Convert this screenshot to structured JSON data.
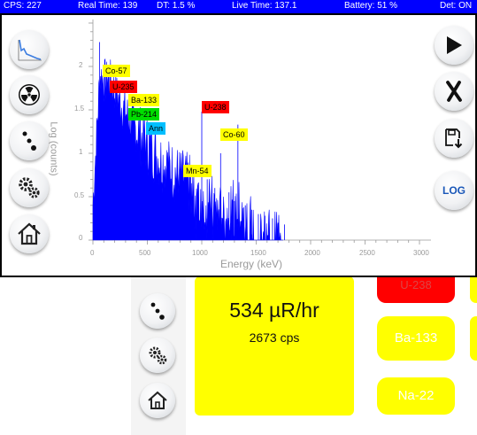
{
  "status_bar": {
    "cps": "CPS: 227",
    "real_time": "Real Time: 139",
    "dt": "DT: 1.5 %",
    "live_time": "Live Time: 137.1",
    "battery": "Battery: 51 %",
    "det": "Det: ON"
  },
  "spectrum": {
    "y_label": "Log (counts)",
    "x_label": "Energy (keV)",
    "y_ticks": [
      "2",
      "1.5",
      "1",
      "0.5",
      "0"
    ],
    "x_ticks": [
      "0",
      "500",
      "1000",
      "1500",
      "2000",
      "2500",
      "3000"
    ],
    "isotope_labels": [
      {
        "label": "Co-57",
        "color": "#ffff00"
      },
      {
        "label": "U-235",
        "color": "#ff0000"
      },
      {
        "label": "Ba-133",
        "color": "#ffff00"
      },
      {
        "label": "Pb-214",
        "color": "#00dd00"
      },
      {
        "label": "Ann",
        "color": "#00bfff"
      },
      {
        "label": "U-238",
        "color": "#ff0000"
      },
      {
        "label": "Co-60",
        "color": "#ffff00"
      },
      {
        "label": "Mn-54",
        "color": "#ffff00"
      }
    ],
    "series_color": "#0000ff"
  },
  "right_toolbar": {
    "log_label": "LOG"
  },
  "background_panel": {
    "dose_rate": "534 µR/hr",
    "count_rate": "2673 cps",
    "partial_top_label": "U-238",
    "isotope_buttons": [
      "Ba-133",
      "Na-22"
    ]
  }
}
